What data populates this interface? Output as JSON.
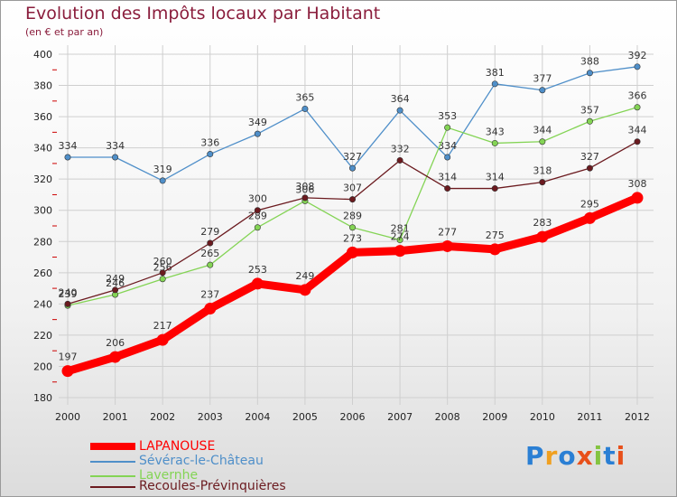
{
  "chart_data": {
    "type": "line",
    "title": "Evolution des Impôts locaux par Habitant",
    "subtitle": "(en € et par an)",
    "xlabel": "",
    "ylabel": "",
    "ylim": [
      180,
      400
    ],
    "yticks": [
      180,
      200,
      220,
      240,
      260,
      280,
      300,
      320,
      340,
      360,
      380,
      400
    ],
    "grid": true,
    "categories": [
      "2000",
      "2001",
      "2002",
      "2003",
      "2004",
      "2005",
      "2006",
      "2007",
      "2008",
      "2009",
      "2010",
      "2011",
      "2012"
    ],
    "series": [
      {
        "name": "Sévérac-le-Château",
        "color": "#4f8fc9",
        "values": [
          334,
          334,
          319,
          336,
          349,
          365,
          327,
          364,
          334,
          381,
          377,
          388,
          392
        ]
      },
      {
        "name": "Lavernhe",
        "color": "#84d455",
        "values": [
          239,
          246,
          256,
          265,
          289,
          306,
          289,
          281,
          353,
          343,
          344,
          357,
          366
        ]
      },
      {
        "name": "Recoules-Prévinquières",
        "color": "#6b1a1f",
        "values": [
          240,
          249,
          260,
          279,
          300,
          308,
          307,
          332,
          314,
          314,
          318,
          327,
          344
        ]
      },
      {
        "name": "LAPANOUSE",
        "color": "#ff0000",
        "values": [
          197,
          206,
          217,
          237,
          253,
          249,
          273,
          274,
          277,
          275,
          283,
          295,
          308
        ]
      }
    ]
  },
  "legend": [
    {
      "name": "LAPANOUSE",
      "color": "#ff0000"
    },
    {
      "name": "Sévérac-le-Château",
      "color": "#4f8fc9"
    },
    {
      "name": "Lavernhe",
      "color": "#84d455"
    },
    {
      "name": "Recoules-Prévinquières",
      "color": "#6b1a1f"
    }
  ],
  "logo": {
    "text": "Proxiti"
  }
}
